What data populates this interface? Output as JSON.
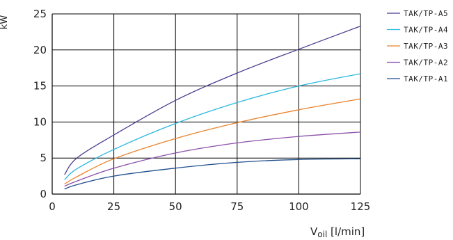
{
  "chart_data": {
    "type": "line",
    "ylabel": "kW",
    "xlabel_main": "V",
    "xlabel_sub": "oil",
    "xlabel_unit": " [l/min]",
    "xlim": [
      0,
      125
    ],
    "ylim": [
      0,
      25
    ],
    "xticks": [
      0,
      25,
      50,
      75,
      100,
      125
    ],
    "yticks": [
      0,
      5,
      10,
      15,
      20,
      25
    ],
    "grid": true,
    "legend_position": "right",
    "series": [
      {
        "name": "TAK/TP-A5",
        "color": "#4b3b8f",
        "x": [
          5,
          10,
          25,
          50,
          75,
          100,
          125
        ],
        "y": [
          2.7,
          5.0,
          8.2,
          13.0,
          16.8,
          20.1,
          23.3
        ]
      },
      {
        "name": "TAK/TP-A4",
        "color": "#2ab7de",
        "x": [
          5,
          10,
          25,
          50,
          75,
          100,
          125
        ],
        "y": [
          2.0,
          3.5,
          6.2,
          9.8,
          12.7,
          15.0,
          16.7
        ]
      },
      {
        "name": "TAK/TP-A3",
        "color": "#e8832a",
        "x": [
          5,
          10,
          25,
          50,
          75,
          100,
          125
        ],
        "y": [
          1.4,
          2.4,
          4.9,
          7.7,
          9.9,
          11.7,
          13.2
        ]
      },
      {
        "name": "TAK/TP-A2",
        "color": "#8a4fa8",
        "x": [
          5,
          10,
          25,
          50,
          75,
          100,
          125
        ],
        "y": [
          1.1,
          1.8,
          3.6,
          5.7,
          7.1,
          8.0,
          8.6
        ]
      },
      {
        "name": "TAK/TP-A1",
        "color": "#1f4e8c",
        "x": [
          5,
          10,
          25,
          50,
          75,
          100,
          125
        ],
        "y": [
          0.7,
          1.3,
          2.5,
          3.6,
          4.4,
          4.8,
          4.9
        ]
      }
    ]
  }
}
